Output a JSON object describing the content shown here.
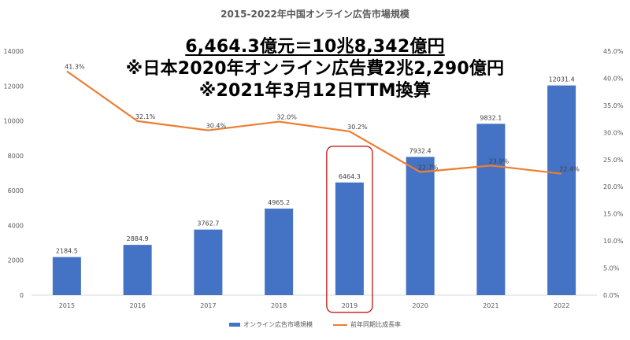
{
  "chart_data": {
    "type": "bar",
    "title": "2015-2022年中国オンライン広告市場規模",
    "categories": [
      "2015",
      "2016",
      "2017",
      "2018",
      "2019",
      "2020",
      "2021",
      "2022"
    ],
    "series": [
      {
        "name": "オンライン広告市場規模",
        "type": "bar",
        "axis": "left",
        "values": [
          2184.5,
          2884.9,
          3762.7,
          4965.2,
          6464.3,
          7932.4,
          9832.1,
          12031.4
        ],
        "labels": [
          "2184.5",
          "2884.9",
          "3762.7",
          "4965.2",
          "6464.3",
          "7932.4",
          "9832.1",
          "12031.4"
        ]
      },
      {
        "name": "前年同期比成長率",
        "type": "line",
        "axis": "right",
        "values": [
          41.3,
          32.1,
          30.4,
          32.0,
          30.2,
          22.7,
          23.9,
          22.4
        ],
        "labels": [
          "41.3%",
          "32.1%",
          "30.4%",
          "32.0%",
          "30.2%",
          "22.7%",
          "23.9%",
          "22.4%"
        ]
      }
    ],
    "y_left": {
      "min": 0,
      "max": 14000,
      "ticks": [
        "0",
        "2000",
        "4000",
        "6000",
        "8000",
        "10000",
        "12000",
        "14000"
      ]
    },
    "y_right": {
      "min": 0,
      "max": 45,
      "ticks": [
        "0.0%",
        "5.0%",
        "10.0%",
        "15.0%",
        "20.0%",
        "25.0%",
        "30.0%",
        "35.0%",
        "40.0%",
        "45.0%"
      ]
    },
    "grid": false,
    "legend_position": "bottom",
    "highlight_category": "2019",
    "annotations": [
      "6,464.3億元＝10兆8,342億円",
      "※日本2020年オンライン広告費2兆2,290億円",
      "※2021年3月12日TTM換算"
    ],
    "colors": {
      "bar": "#4472C4",
      "line": "#ED7D31",
      "highlight_box": "#C00000"
    }
  }
}
